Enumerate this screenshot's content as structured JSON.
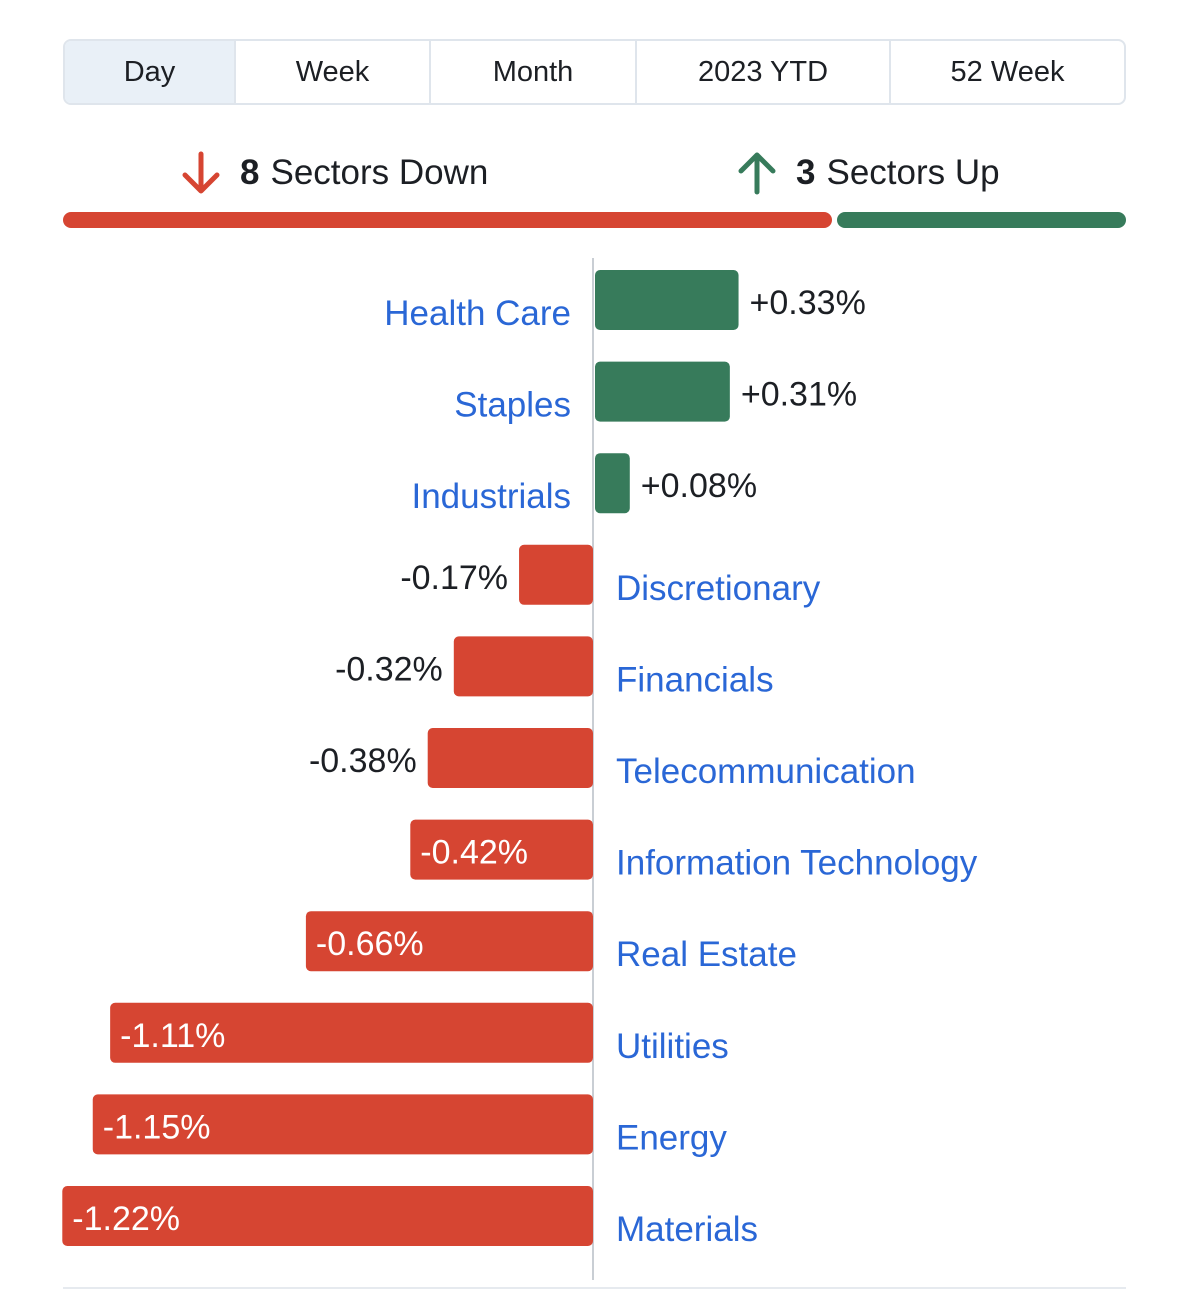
{
  "tabs": [
    {
      "label": "Day",
      "active": true
    },
    {
      "label": "Week",
      "active": false
    },
    {
      "label": "Month",
      "active": false
    },
    {
      "label": "2023 YTD",
      "active": false
    },
    {
      "label": "52 Week",
      "active": false
    }
  ],
  "summary": {
    "down": {
      "count": "8",
      "label": "Sectors Down",
      "icon": "arrow-down-icon"
    },
    "up": {
      "count": "3",
      "label": "Sectors Up",
      "icon": "arrow-up-icon"
    }
  },
  "colors": {
    "negative": "#d64532",
    "positive": "#377b5b",
    "label": "#2a67d6",
    "text": "#1c1f24"
  },
  "chart_data": {
    "type": "bar",
    "orientation": "horizontal-diverging",
    "categories": [
      "Health Care",
      "Staples",
      "Industrials",
      "Discretionary",
      "Financials",
      "Telecommunication",
      "Information Technology",
      "Real Estate",
      "Utilities",
      "Energy",
      "Materials"
    ],
    "values": [
      0.33,
      0.31,
      0.08,
      -0.17,
      -0.32,
      -0.38,
      -0.42,
      -0.66,
      -1.11,
      -1.15,
      -1.22
    ],
    "value_labels": [
      "+0.33%",
      "+0.31%",
      "+0.08%",
      "-0.17%",
      "-0.32%",
      "-0.38%",
      "-0.42%",
      "-0.66%",
      "-1.11%",
      "-1.15%",
      "-1.22%"
    ],
    "unit": "%"
  }
}
